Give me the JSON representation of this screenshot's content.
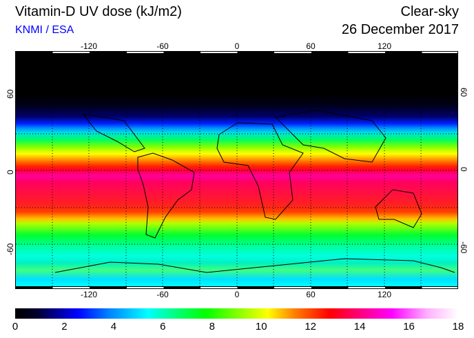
{
  "header": {
    "title": "Vitamin-D UV dose (kJ/m2)",
    "source": "KNMI / ESA",
    "sky": "Clear-sky",
    "date": "26 December 2017"
  },
  "axes": {
    "lon_labels": [
      "-120",
      "-60",
      "0",
      "60",
      "120"
    ],
    "lat_labels": [
      "60",
      "0",
      "-60"
    ]
  },
  "colorbar": {
    "labels": [
      "0",
      "2",
      "4",
      "6",
      "8",
      "10",
      "12",
      "14",
      "16",
      "18"
    ],
    "min": 0,
    "max": 18,
    "units": "kJ/m2"
  }
}
